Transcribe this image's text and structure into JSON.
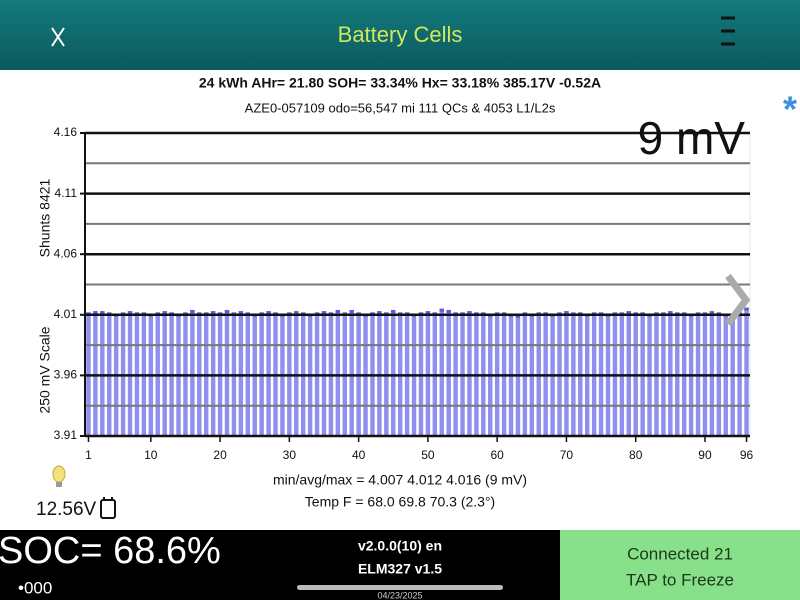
{
  "header": {
    "title": "Battery Cells"
  },
  "info": [
    "24 kWh  AHr= 21.80  SOH= 33.34%   Hx= 33.18%   385.17V -0.52A",
    "AZE0-057109 odo=56,547 mi  111 QCs & 4053 L1/L2s"
  ],
  "chart_data": {
    "type": "bar",
    "y_label": "250 mV Scale",
    "y_label_2": "Shunts 8421",
    "annotation": "9 mV",
    "x": [
      1,
      2,
      3,
      4,
      5,
      6,
      7,
      8,
      9,
      10,
      11,
      12,
      13,
      14,
      15,
      16,
      17,
      18,
      19,
      20,
      21,
      22,
      23,
      24,
      25,
      26,
      27,
      28,
      29,
      30,
      31,
      32,
      33,
      34,
      35,
      36,
      37,
      38,
      39,
      40,
      41,
      42,
      43,
      44,
      45,
      46,
      47,
      48,
      49,
      50,
      51,
      52,
      53,
      54,
      55,
      56,
      57,
      58,
      59,
      60,
      61,
      62,
      63,
      64,
      65,
      66,
      67,
      68,
      69,
      70,
      71,
      72,
      73,
      74,
      75,
      76,
      77,
      78,
      79,
      80,
      81,
      82,
      83,
      84,
      85,
      86,
      87,
      88,
      89,
      90,
      91,
      92,
      93,
      94,
      95,
      96
    ],
    "values": [
      4.012,
      4.013,
      4.013,
      4.012,
      4.011,
      4.012,
      4.013,
      4.012,
      4.012,
      4.011,
      4.012,
      4.013,
      4.012,
      4.011,
      4.012,
      4.014,
      4.012,
      4.012,
      4.013,
      4.012,
      4.014,
      4.012,
      4.013,
      4.012,
      4.011,
      4.012,
      4.013,
      4.012,
      4.011,
      4.012,
      4.013,
      4.012,
      4.011,
      4.012,
      4.013,
      4.012,
      4.014,
      4.012,
      4.014,
      4.012,
      4.011,
      4.012,
      4.013,
      4.012,
      4.014,
      4.012,
      4.012,
      4.011,
      4.012,
      4.013,
      4.012,
      4.015,
      4.014,
      4.012,
      4.012,
      4.013,
      4.012,
      4.012,
      4.011,
      4.012,
      4.012,
      4.011,
      4.01,
      4.012,
      4.011,
      4.012,
      4.012,
      4.011,
      4.012,
      4.013,
      4.012,
      4.012,
      4.011,
      4.012,
      4.012,
      4.011,
      4.012,
      4.012,
      4.013,
      4.012,
      4.012,
      4.011,
      4.012,
      4.012,
      4.013,
      4.012,
      4.012,
      4.011,
      4.012,
      4.012,
      4.013,
      4.012,
      4.011,
      4.007,
      4.012,
      4.016
    ],
    "color": "#8f8ff0",
    "xlim": [
      0.5,
      96.5
    ],
    "xticks": [
      1,
      10,
      20,
      30,
      40,
      50,
      60,
      70,
      80,
      90,
      96
    ],
    "ylim": [
      3.91,
      4.16
    ],
    "yticks": [
      3.91,
      3.96,
      4.01,
      4.06,
      4.11,
      4.16
    ],
    "grid": true
  },
  "summary": [
    "min/avg/max = 4.007 4.012 4.016  (9 mV)",
    "Temp F = 68.0  69.8  70.3  (2.3°)"
  ],
  "battery_12v": "12.56V",
  "footer": {
    "soc": "SOC= 68.6%",
    "soc_sub": "•000",
    "version": "v2.0.0(10) en",
    "adapter": "ELM327 v1.5",
    "date": "04/23/2025",
    "status": "Connected 21",
    "action": "TAP to Freeze"
  }
}
